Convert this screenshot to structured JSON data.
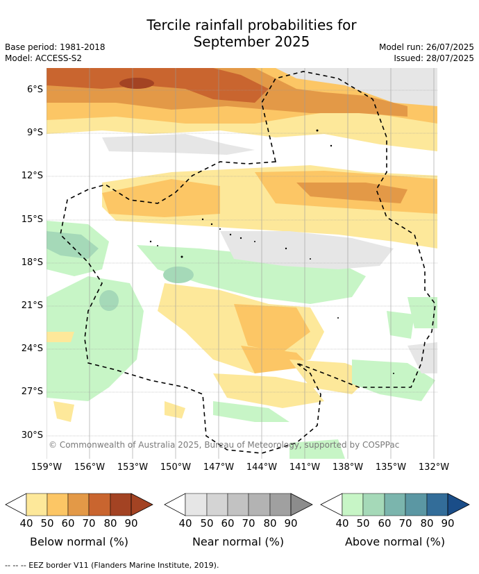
{
  "title": {
    "line1": "Tercile rainfall probabilities for",
    "line2": "September 2025"
  },
  "meta": {
    "base_period": "Base period: 1981-2018",
    "model": "Model: ACCESS-S2",
    "model_run": "Model run: 26/07/2025",
    "issued": "Issued: 28/07/2025"
  },
  "copyright": "© Commonwealth of Australia 2025, Bureau of Meteorology, supported by COSPPac",
  "axes": {
    "lat_labels": [
      "6°S",
      "9°S",
      "12°S",
      "15°S",
      "18°S",
      "21°S",
      "24°S",
      "27°S",
      "30°S"
    ],
    "lon_labels": [
      "159°W",
      "156°W",
      "153°W",
      "150°W",
      "147°W",
      "144°W",
      "141°W",
      "138°W",
      "135°W",
      "132°W"
    ]
  },
  "colorbars": [
    {
      "name": "Below normal (%)",
      "ticks": [
        "40",
        "50",
        "60",
        "70",
        "80",
        "90"
      ],
      "colors": [
        "#fde89a",
        "#fcc665",
        "#e39947",
        "#c9652f",
        "#a34323",
        "#a34323"
      ]
    },
    {
      "name": "Near normal (%)",
      "ticks": [
        "40",
        "50",
        "60",
        "70",
        "80",
        "90"
      ],
      "colors": [
        "#e6e6e6",
        "#d4d4d4",
        "#c2c2c2",
        "#b3b3b3",
        "#a0a0a0",
        "#8c8c8c"
      ]
    },
    {
      "name": "Above normal (%)",
      "ticks": [
        "40",
        "50",
        "60",
        "70",
        "80",
        "90"
      ],
      "colors": [
        "#c7f5c6",
        "#a5d9b8",
        "#7bb5ad",
        "#5b97a3",
        "#336d99",
        "#1a4d88"
      ]
    }
  ],
  "footer": "--  --  -- EEZ border V11 (Flanders Marine Institute, 2019)."
}
